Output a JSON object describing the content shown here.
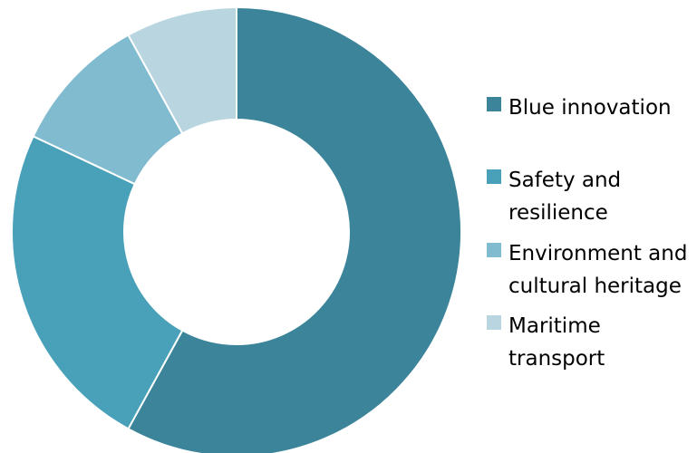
{
  "chart_data": {
    "type": "pie",
    "variant": "donut",
    "categories": [
      "Blue innovation",
      "Safety and resilience",
      "Environment and cultural heritage",
      "Maritime transport"
    ],
    "values": [
      58,
      24,
      10,
      8
    ],
    "colors": [
      "#3b8499",
      "#48a1b8",
      "#80bbcf",
      "#b8d5e0"
    ],
    "title": "",
    "legend_position": "right"
  },
  "legend": [
    {
      "label": "Blue innovation",
      "color": "#3b8499"
    },
    {
      "label": "Safety and resilience",
      "color": "#48a1b8"
    },
    {
      "label": "Environment and cultural heritage",
      "color": "#80bbcf"
    },
    {
      "label": "Maritime transport",
      "color": "#b8d5e0"
    }
  ]
}
